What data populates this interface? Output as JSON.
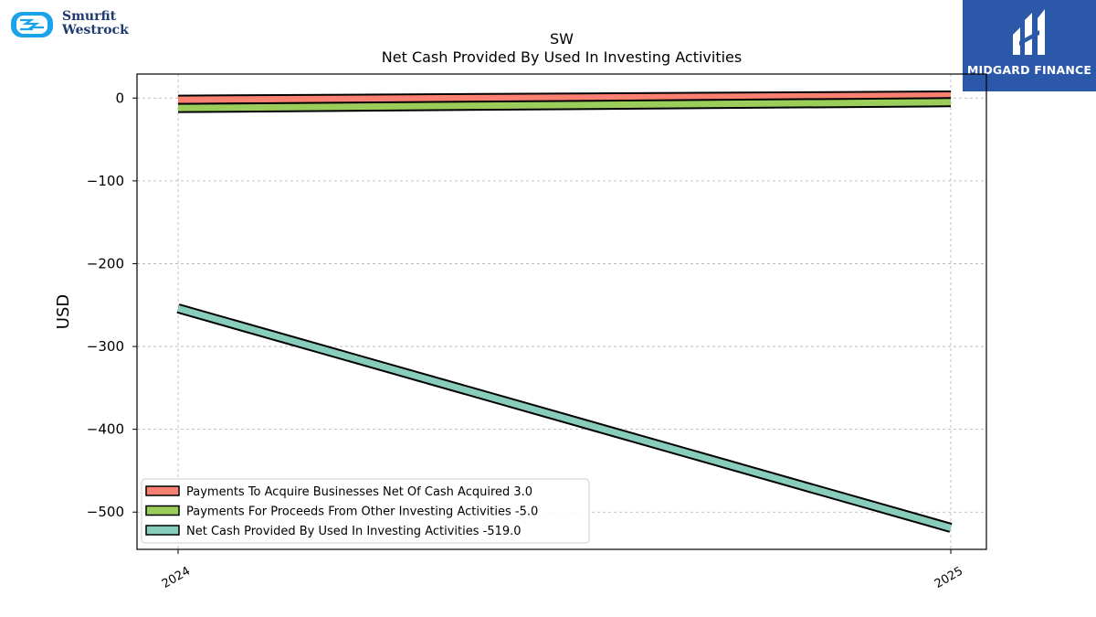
{
  "logos": {
    "left": {
      "name": "Smurfit Westrock",
      "line1": "Smurfit",
      "line2": "Westrock",
      "color": "#1aa3e8"
    },
    "right": {
      "name": "MIDGARD FINANCE",
      "bg": "#2b58a8"
    }
  },
  "chart_data": {
    "type": "line",
    "title": "SW",
    "subtitle": "Net Cash Provided By Used In Investing Activities",
    "xlabel": "",
    "ylabel": "USD",
    "categories": [
      "2024",
      "2025"
    ],
    "ylim": [
      -545,
      29
    ],
    "yticks": [
      0,
      -100,
      -200,
      -300,
      -400,
      -500
    ],
    "ytick_labels": [
      "0",
      "−100",
      "−200",
      "−300",
      "−400",
      "−500"
    ],
    "grid": true,
    "legend_position": "lower-left",
    "series": [
      {
        "name": "Payments To Acquire Businesses Net Of Cash Acquired",
        "legend_label": "Payments To Acquire Businesses Net Of Cash Acquired  3.0",
        "values": [
          -2,
          3.0
        ],
        "color": "#fa8072"
      },
      {
        "name": "Payments For Proceeds From Other Investing Activities",
        "legend_label": "Payments For Proceeds From Other Investing Activities  -5.0",
        "values": [
          -12,
          -5.0
        ],
        "color": "#9acd5a"
      },
      {
        "name": "Net Cash Provided By Used In Investing Activities",
        "legend_label": "Net Cash Provided By Used In Investing Activities  -519.0",
        "values": [
          -254,
          -519.0
        ],
        "color": "#88ccbb"
      }
    ]
  }
}
